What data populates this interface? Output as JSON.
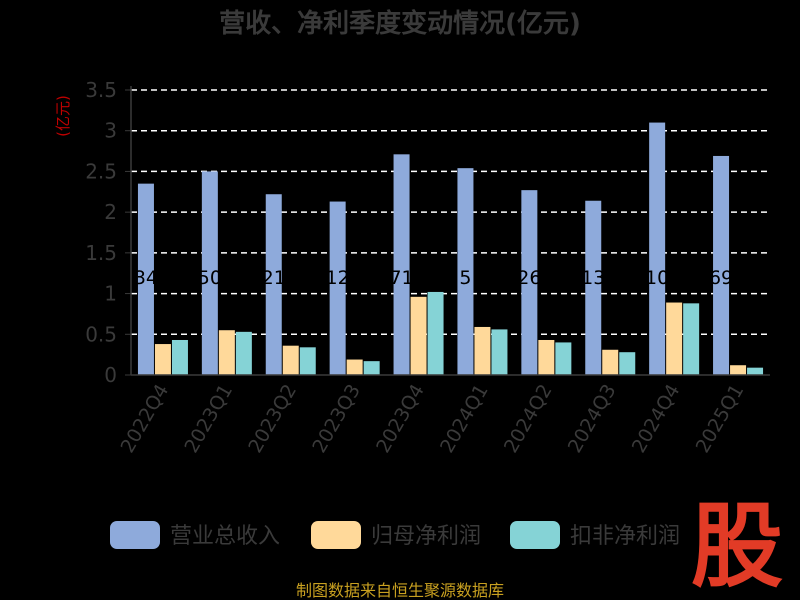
{
  "colors": {
    "background": "#000000",
    "text": "#3a3a3a",
    "grid": "#ffffff",
    "ylabel": "#c00000",
    "source": "#c8a020",
    "watermark": "#e23b26"
  },
  "source_text": "制图数据来自恒生聚源数据库",
  "watermark_text": "股",
  "chart_data": {
    "type": "bar",
    "title": "营收、净利季度变动情况(亿元)",
    "xlabel": "",
    "ylabel": "(亿元)",
    "ylim": [
      0,
      3.5
    ],
    "yticks": [
      "0",
      "0.5",
      "1",
      "1.5",
      "2",
      "2.5",
      "3",
      "3.5"
    ],
    "grid": true,
    "legend_position": "bottom",
    "categories": [
      "2022Q4",
      "2023Q1",
      "2023Q2",
      "2023Q3",
      "2023Q4",
      "2024Q1",
      "2024Q2",
      "2024Q3",
      "2024Q4",
      "2025Q1"
    ],
    "series": [
      {
        "name": "营业总收入",
        "color": "#8eaadb",
        "values": [
          2.35,
          2.5,
          2.22,
          2.13,
          2.71,
          2.54,
          2.27,
          2.14,
          3.1,
          2.69
        ],
        "labels": [
          "34",
          "50",
          "21",
          "12",
          "71",
          "5",
          "26",
          "13",
          "10",
          "69"
        ]
      },
      {
        "name": "归母净利润",
        "color": "#ffd99a",
        "values": [
          0.38,
          0.55,
          0.36,
          0.19,
          0.96,
          0.59,
          0.43,
          0.31,
          0.89,
          0.12
        ]
      },
      {
        "name": "扣非净利润",
        "color": "#85d3d6",
        "values": [
          0.43,
          0.53,
          0.34,
          0.17,
          1.02,
          0.56,
          0.4,
          0.28,
          0.88,
          0.09
        ]
      }
    ]
  }
}
